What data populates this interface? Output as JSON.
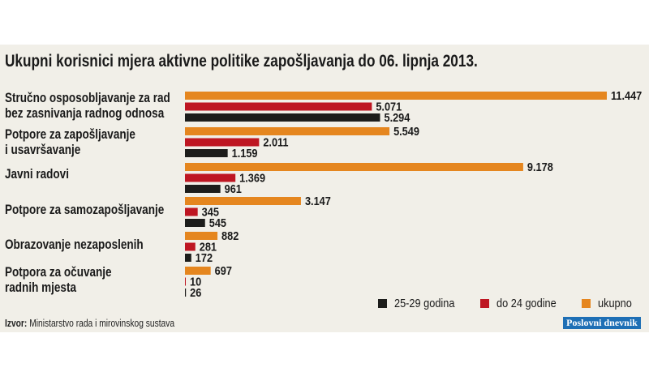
{
  "chart_data": {
    "type": "bar",
    "orientation": "horizontal",
    "title": "Ukupni korisnici mjera aktivne politike zapošljavanja do 06. lipnja 2013.",
    "categories": [
      [
        "Stručno osposobljavanje za rad",
        "bez zasnivanja radnog odnosa"
      ],
      [
        "Potpore za zapošljavanje",
        "i usavršavanje"
      ],
      [
        "Javni radovi"
      ],
      [
        "Potpore za samozapošljavanje"
      ],
      [
        "Obrazovanje nezaposlenih"
      ],
      [
        "Potpora za očuvanje",
        "radnih mjesta"
      ]
    ],
    "series": [
      {
        "name": "ukupno",
        "color": "#e5861f",
        "values": [
          11447,
          5549,
          9178,
          3147,
          882,
          697
        ],
        "labels": [
          "11.447",
          "5.549",
          "9.178",
          "3.147",
          "882",
          "697"
        ]
      },
      {
        "name": "do 24 godine",
        "color": "#be1622",
        "values": [
          5071,
          2011,
          1369,
          345,
          281,
          10
        ],
        "labels": [
          "5.071",
          "2.011",
          "1.369",
          "345",
          "281",
          "10"
        ]
      },
      {
        "name": "25-29 godina",
        "color": "#1d1d1b",
        "values": [
          5294,
          1159,
          961,
          545,
          172,
          26
        ],
        "labels": [
          "5.294",
          "1.159",
          "961",
          "545",
          "172",
          "26"
        ]
      }
    ],
    "legend_order": [
      "25-29 godina",
      "do 24 godine",
      "ukupno"
    ],
    "legend_placement": "bottom-right",
    "grid": false
  },
  "source": {
    "label": "Izvor:",
    "text": "Ministarstvo rada i mirovinskog sustava"
  },
  "logo": {
    "text": "Poslovni dnevnik"
  }
}
